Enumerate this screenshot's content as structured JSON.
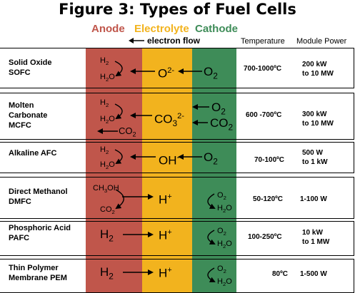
{
  "title": "Figure 3: Types of Fuel Cells",
  "headers": {
    "anode": "Anode",
    "electrolyte": "Electrolyte",
    "cathode": "Cathode",
    "temperature": "Temperature",
    "module_power": "Module Power",
    "electron_flow": "electron flow"
  },
  "colors": {
    "anode": "#c0564b",
    "electrolyte": "#f2b31e",
    "cathode": "#3e8c58"
  },
  "rows": [
    {
      "name1": "Solid Oxide",
      "name2": "SOFC",
      "anode_top": "H2",
      "anode_bottom": "H2O",
      "ion": "O2-",
      "cathode_top": "O2",
      "cathode_bottom": "",
      "temperature": "700-1000ºC",
      "power1": "200 kW",
      "power2": "to 10 MW"
    },
    {
      "name1": "Molten",
      "name2": "Carbonate",
      "name3": "MCFC",
      "anode_top": "H2",
      "anode_bottom": "H2O",
      "anode_extra": "CO2",
      "ion": "CO32-",
      "cathode_top": "O2",
      "cathode_bottom": "CO2",
      "temperature": "600 -700ºC",
      "power1": "300 kW",
      "power2": "to 10 MW"
    },
    {
      "name1": "Alkaline AFC",
      "name2": "",
      "anode_top": "H2",
      "anode_bottom": "H2O",
      "ion": "OH-",
      "cathode_top": "O2",
      "cathode_bottom": "",
      "temperature": "70-100ºC",
      "power1": "500 W",
      "power2": "to 1 kW"
    },
    {
      "name1": "Direct Methanol",
      "name2": "DMFC",
      "anode_top": "CH3OH",
      "anode_bottom": "CO2",
      "ion": "H+",
      "cathode_top": "O2",
      "cathode_bottom": "H2O",
      "temperature": "50-120ºC",
      "power1": "1-100 W",
      "power2": ""
    },
    {
      "name1": "Phosphoric Acid",
      "name2": "PAFC",
      "anode_top": "H2",
      "anode_bottom": "",
      "ion": "H+",
      "cathode_top": "O2",
      "cathode_bottom": "H2O",
      "temperature": "100-250ºC",
      "power1": "10 kW",
      "power2": "to 1 MW"
    },
    {
      "name1": "Thin Polymer",
      "name2": "Membrane PEM",
      "anode_top": "H2",
      "anode_bottom": "",
      "ion": "H+",
      "cathode_top": "O2",
      "cathode_bottom": "H2O",
      "temperature": "80ºC",
      "power1": "1-500 W",
      "power2": ""
    }
  ]
}
